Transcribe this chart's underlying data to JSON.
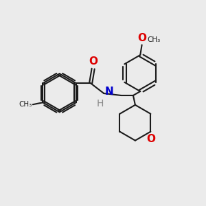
{
  "bg_color": "#ebebeb",
  "bond_color": "#1a1a1a",
  "o_color": "#dd0000",
  "n_color": "#0000cc",
  "h_color": "#888888",
  "lw": 1.5,
  "xlim": [
    0,
    10
  ],
  "ylim": [
    0,
    10
  ]
}
